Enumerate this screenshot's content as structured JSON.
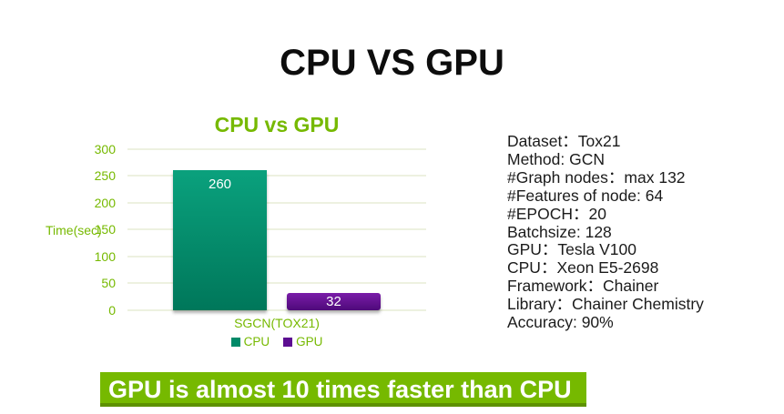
{
  "slide": {
    "title": "CPU VS GPU",
    "banner_text": "GPU is almost 10 times faster than CPU"
  },
  "colors": {
    "accent_green": "#76b900",
    "banner_bg": "#76b900",
    "banner_edge": "#5d9100",
    "grid_line": "#edf1e0",
    "text_dark": "#1b1b1b",
    "cpu_bar_top": "#0aa17d",
    "cpu_bar_bottom": "#00775a",
    "gpu_bar_top": "#7a1ca8",
    "gpu_bar_bottom": "#4e0a7a",
    "value_label": "#ffffff"
  },
  "chart_data": {
    "type": "bar",
    "title": "CPU vs GPU",
    "categories": [
      "SGCN(TOX21)"
    ],
    "series": [
      {
        "name": "CPU",
        "values": [
          260
        ],
        "color": "#008a68"
      },
      {
        "name": "GPU",
        "values": [
          32
        ],
        "color": "#5c0d91"
      }
    ],
    "ylabel": "Time(sec)",
    "xlabel": "",
    "ylim": [
      0,
      300
    ],
    "yticks": [
      0,
      50,
      100,
      150,
      200,
      250,
      300
    ],
    "grid": true,
    "legend_position": "bottom",
    "data_labels": true
  },
  "details": {
    "lines": [
      "Dataset：Tox21",
      "Method: GCN",
      "#Graph nodes：max 132",
      "#Features of node: 64",
      "#EPOCH：20",
      "Batchsize: 128",
      "GPU：Tesla V100",
      "CPU：Xeon E5-2698",
      "Framework：Chainer",
      "Library：Chainer Chemistry",
      "Accuracy: 90%"
    ]
  }
}
